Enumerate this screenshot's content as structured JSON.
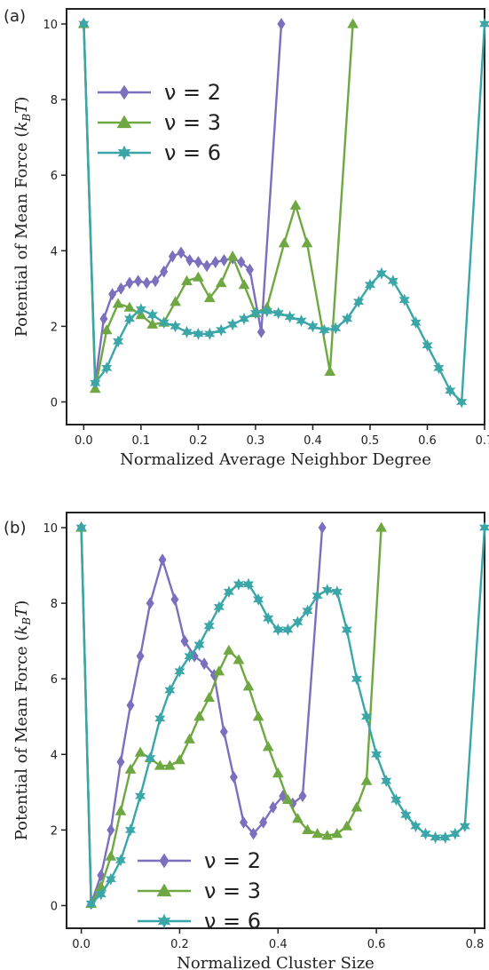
{
  "chart_data": [
    {
      "type": "line",
      "panel_label": "(a)",
      "xlabel": "Normalized Average Neighbor Degree",
      "ylabel": "Potential of Mean Force (k_BT)",
      "xlim": [
        -0.03,
        0.7
      ],
      "ylim": [
        -0.6,
        10.4
      ],
      "xticks": [
        0.0,
        0.1,
        0.2,
        0.3,
        0.4,
        0.5,
        0.6,
        0.7
      ],
      "xtick_labels": [
        "0.0",
        "0.1",
        "0.2",
        "0.3",
        "0.4",
        "0.5",
        "0.6",
        "0.7"
      ],
      "yticks": [
        0,
        2,
        4,
        6,
        8,
        10
      ],
      "ytick_labels": [
        "0",
        "2",
        "4",
        "6",
        "8",
        "10"
      ],
      "legend_position": "upper-left",
      "series": [
        {
          "name": "ν = 2",
          "color": "#7b6fbe",
          "marker": "diamond",
          "x": [
            0.0,
            0.02,
            0.035,
            0.05,
            0.065,
            0.08,
            0.095,
            0.11,
            0.125,
            0.14,
            0.155,
            0.17,
            0.185,
            0.2,
            0.215,
            0.23,
            0.245,
            0.26,
            0.275,
            0.29,
            0.31,
            0.345
          ],
          "y": [
            10,
            0.5,
            2.2,
            2.85,
            3.0,
            3.15,
            3.2,
            3.15,
            3.2,
            3.45,
            3.85,
            3.95,
            3.75,
            3.7,
            3.6,
            3.7,
            3.75,
            3.8,
            3.7,
            3.5,
            1.85,
            10
          ]
        },
        {
          "name": "ν = 3",
          "color": "#6fa842",
          "marker": "triangle",
          "x": [
            0.0,
            0.02,
            0.04,
            0.06,
            0.08,
            0.1,
            0.12,
            0.14,
            0.16,
            0.18,
            0.2,
            0.22,
            0.24,
            0.26,
            0.28,
            0.3,
            0.32,
            0.35,
            0.37,
            0.39,
            0.43,
            0.47
          ],
          "y": [
            10,
            0.35,
            1.9,
            2.6,
            2.5,
            2.3,
            2.05,
            2.1,
            2.65,
            3.2,
            3.3,
            2.75,
            3.15,
            3.85,
            3.1,
            2.35,
            2.5,
            4.2,
            5.2,
            4.2,
            0.8,
            10
          ]
        },
        {
          "name": "ν = 6",
          "color": "#3aa6a8",
          "marker": "star",
          "x": [
            0.0,
            0.02,
            0.04,
            0.06,
            0.08,
            0.1,
            0.12,
            0.14,
            0.16,
            0.18,
            0.2,
            0.22,
            0.24,
            0.26,
            0.28,
            0.3,
            0.32,
            0.34,
            0.36,
            0.38,
            0.4,
            0.42,
            0.44,
            0.46,
            0.48,
            0.5,
            0.52,
            0.54,
            0.56,
            0.58,
            0.6,
            0.62,
            0.64,
            0.66,
            0.7
          ],
          "y": [
            10,
            0.5,
            0.9,
            1.6,
            2.2,
            2.45,
            2.3,
            2.1,
            2.0,
            1.85,
            1.8,
            1.8,
            1.9,
            2.05,
            2.2,
            2.35,
            2.4,
            2.35,
            2.25,
            2.15,
            2.0,
            1.9,
            1.95,
            2.2,
            2.65,
            3.1,
            3.4,
            3.2,
            2.7,
            2.1,
            1.5,
            0.9,
            0.3,
            0.0,
            10
          ]
        }
      ]
    },
    {
      "type": "line",
      "panel_label": "(b)",
      "xlabel": "Normalized Cluster Size",
      "ylabel": "Potential of Mean Force (k_BT)",
      "xlim": [
        -0.03,
        0.82
      ],
      "ylim": [
        -0.6,
        10.4
      ],
      "xticks": [
        0.0,
        0.2,
        0.4,
        0.6,
        0.8
      ],
      "xtick_labels": [
        "0.0",
        "0.2",
        "0.4",
        "0.6",
        "0.8"
      ],
      "yticks": [
        0,
        2,
        4,
        6,
        8,
        10
      ],
      "ytick_labels": [
        "0",
        "2",
        "4",
        "6",
        "8",
        "10"
      ],
      "legend_position": "lower-center",
      "series": [
        {
          "name": "ν = 2",
          "color": "#7b6fbe",
          "marker": "diamond",
          "x": [
            0.0,
            0.02,
            0.04,
            0.06,
            0.08,
            0.1,
            0.12,
            0.14,
            0.165,
            0.19,
            0.21,
            0.23,
            0.25,
            0.27,
            0.29,
            0.31,
            0.33,
            0.35,
            0.37,
            0.39,
            0.41,
            0.43,
            0.45,
            0.49
          ],
          "y": [
            10,
            0.05,
            0.8,
            2.0,
            3.8,
            5.3,
            6.6,
            8.0,
            9.15,
            8.1,
            7.0,
            6.6,
            6.4,
            6.1,
            4.6,
            3.4,
            2.2,
            1.9,
            2.2,
            2.6,
            2.9,
            2.7,
            2.9,
            10
          ]
        },
        {
          "name": "ν = 3",
          "color": "#6fa842",
          "marker": "triangle",
          "x": [
            0.0,
            0.02,
            0.04,
            0.06,
            0.08,
            0.1,
            0.12,
            0.14,
            0.16,
            0.18,
            0.2,
            0.22,
            0.24,
            0.26,
            0.28,
            0.3,
            0.32,
            0.34,
            0.36,
            0.38,
            0.4,
            0.42,
            0.44,
            0.46,
            0.48,
            0.5,
            0.52,
            0.54,
            0.56,
            0.58,
            0.61
          ],
          "y": [
            10,
            0.05,
            0.5,
            1.3,
            2.5,
            3.6,
            4.05,
            3.9,
            3.7,
            3.7,
            3.85,
            4.4,
            5.0,
            5.5,
            6.2,
            6.75,
            6.5,
            5.8,
            5.0,
            4.2,
            3.5,
            2.8,
            2.3,
            2.0,
            1.9,
            1.85,
            1.9,
            2.1,
            2.6,
            3.3,
            10
          ]
        },
        {
          "name": "ν = 6",
          "color": "#3aa6a8",
          "marker": "star",
          "x": [
            0.0,
            0.02,
            0.04,
            0.06,
            0.08,
            0.1,
            0.12,
            0.14,
            0.16,
            0.18,
            0.2,
            0.22,
            0.24,
            0.26,
            0.28,
            0.3,
            0.32,
            0.34,
            0.36,
            0.38,
            0.4,
            0.42,
            0.44,
            0.46,
            0.48,
            0.5,
            0.52,
            0.54,
            0.56,
            0.58,
            0.6,
            0.62,
            0.64,
            0.66,
            0.68,
            0.7,
            0.72,
            0.74,
            0.76,
            0.78,
            0.82
          ],
          "y": [
            10,
            0.05,
            0.3,
            0.7,
            1.2,
            2.0,
            2.9,
            3.9,
            4.95,
            5.7,
            6.2,
            6.6,
            6.9,
            7.4,
            7.9,
            8.3,
            8.5,
            8.5,
            8.1,
            7.6,
            7.3,
            7.3,
            7.5,
            7.8,
            8.2,
            8.35,
            8.3,
            7.3,
            6.0,
            5.0,
            4.0,
            3.3,
            2.8,
            2.4,
            2.1,
            1.9,
            1.8,
            1.8,
            1.9,
            2.1,
            10
          ]
        }
      ]
    }
  ]
}
